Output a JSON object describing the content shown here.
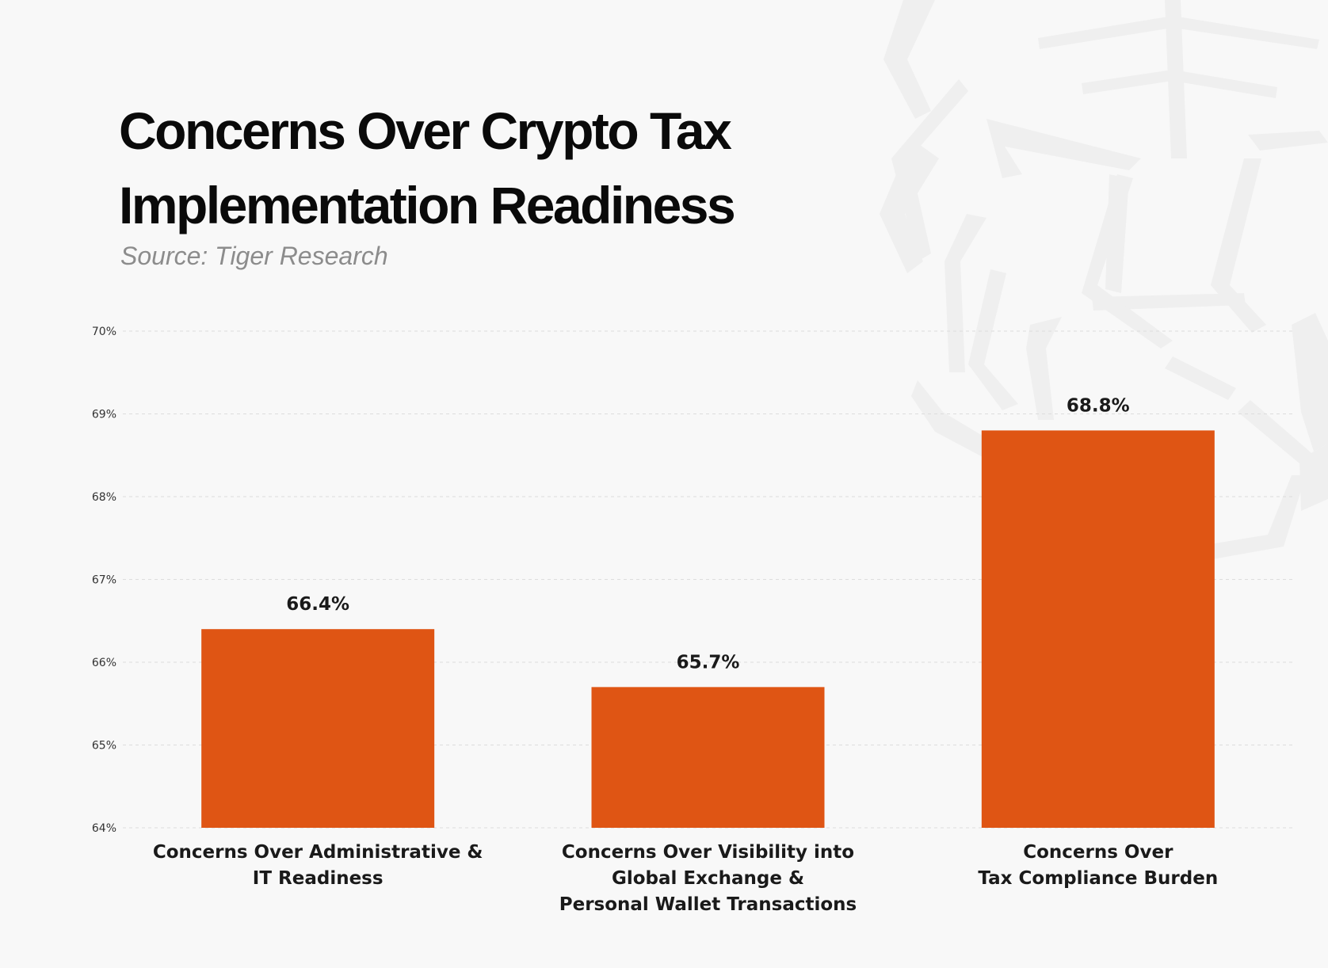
{
  "title_line1": "Concerns Over Crypto Tax",
  "title_line2": "Implementation Readiness",
  "subtitle": "Source: Tiger Research",
  "colors": {
    "bar": "#df5514",
    "background": "#f8f8f8",
    "grid": "#dddddd",
    "text": "#1a1a1a"
  },
  "chart_data": {
    "type": "bar",
    "title": "Concerns Over Crypto Tax Implementation Readiness",
    "subtitle": "Source: Tiger Research",
    "categories": [
      [
        "Concerns Over Administrative &",
        "IT Readiness"
      ],
      [
        "Concerns Over Visibility into",
        "Global Exchange &",
        "Personal Wallet Transactions"
      ],
      [
        "Concerns Over",
        "Tax Compliance Burden"
      ]
    ],
    "values": [
      66.4,
      65.7,
      68.8
    ],
    "value_labels": [
      "66.4%",
      "65.7%",
      "68.8%"
    ],
    "ylim": [
      64,
      70
    ],
    "yticks": [
      64,
      65,
      66,
      67,
      68,
      69,
      70
    ],
    "ytick_labels": [
      "64%",
      "65%",
      "66%",
      "67%",
      "68%",
      "69%",
      "70%"
    ],
    "grid": true,
    "legend": false
  }
}
